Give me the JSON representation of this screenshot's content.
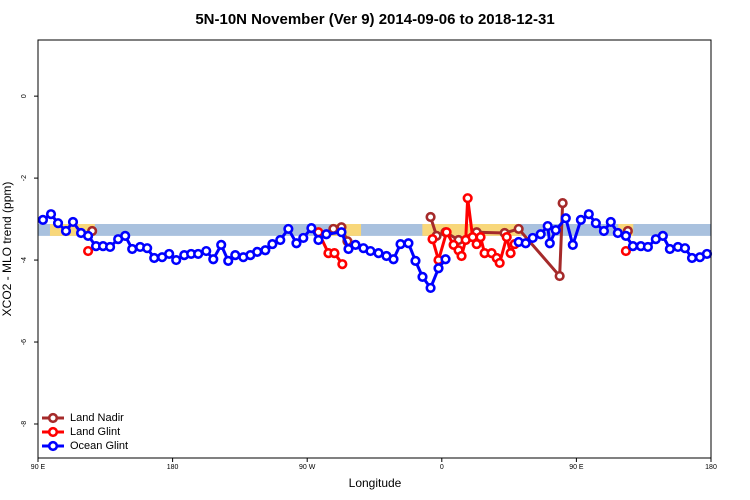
{
  "chart_data": {
    "type": "line",
    "title": "5N-10N November (Ver 9)   2014-09-06 to 2018-12-31",
    "x_label": "Longitude",
    "y_label": "XCO2 - MLO trend (ppm)",
    "xlim": [
      90,
      540
    ],
    "ylim": [
      -8.83,
      1.37
    ],
    "xticks": [
      {
        "value": 90,
        "label": "90 E"
      },
      {
        "value": 180,
        "label": "180"
      },
      {
        "value": 270,
        "label": "90 W"
      },
      {
        "value": 360,
        "label": "0"
      },
      {
        "value": 450,
        "label": "90 E"
      },
      {
        "value": 540,
        "label": "180"
      }
    ],
    "yticks": [
      0,
      -2,
      -4,
      -6,
      -8
    ],
    "legend_position": "bottom-left",
    "bands": [
      {
        "color": "#a9c1de",
        "xlim": [
          90,
          540
        ],
        "ylim": [
          -3.41,
          -3.12
        ]
      },
      {
        "color": "#f8d77a",
        "xlim": [
          98,
          128
        ],
        "ylim": [
          -3.41,
          -3.12
        ]
      },
      {
        "color": "#f8d77a",
        "xlim": [
          286,
          306
        ],
        "ylim": [
          -3.41,
          -3.12
        ]
      },
      {
        "color": "#f8d77a",
        "xlim": [
          347,
          413
        ],
        "ylim": [
          -3.41,
          -3.12
        ]
      },
      {
        "color": "#f8d77a",
        "xlim": [
          478,
          488
        ],
        "ylim": [
          -3.41,
          -3.12
        ]
      }
    ],
    "series": [
      {
        "name": "Land Nadir",
        "color": "#a52a2a",
        "x": [
          126.2,
          null,
          287.5,
          292.9,
          296.9,
          null,
          352.5,
          356.5,
          362.5,
          371.2,
          383.3,
          402.0,
          411.4,
          438.8,
          440.8,
          null,
          484.4
        ],
        "values": [
          -3.29,
          null,
          -3.24,
          -3.2,
          -3.54,
          null,
          -2.95,
          -3.41,
          -3.32,
          -3.51,
          -3.32,
          -3.34,
          -3.24,
          -4.39,
          -2.61,
          null,
          -3.29
        ]
      },
      {
        "name": "Land Glint",
        "color": "#ff0000",
        "x": [
          123.5,
          null,
          277.5,
          284.2,
          288.2,
          293.5,
          null,
          353.8,
          357.8,
          363.2,
          367.9,
          371.2,
          373.2,
          376.0,
          377.3,
          380.6,
          383.3,
          385.9,
          388.6,
          393.3,
          396.7,
          398.7,
          403.4,
          406.0,
          408.7,
          null,
          483.1
        ],
        "values": [
          -3.78,
          null,
          -3.32,
          -3.83,
          -3.83,
          -4.1,
          null,
          -3.49,
          -4.0,
          -3.32,
          -3.63,
          -3.76,
          -3.9,
          -3.51,
          -2.49,
          -3.44,
          -3.61,
          -3.44,
          -3.83,
          -3.83,
          -3.95,
          -4.07,
          -3.44,
          -3.83,
          -3.61,
          null,
          -3.78
        ]
      },
      {
        "name": "Ocean Glint",
        "color": "#0000ff",
        "x": [
          93.3,
          98.7,
          103.4,
          108.7,
          113.4,
          118.8,
          123.5,
          128.8,
          133.5,
          138.2,
          143.6,
          148.3,
          153.0,
          158.3,
          163.0,
          167.7,
          173.0,
          177.7,
          182.4,
          187.8,
          192.4,
          197.1,
          202.5,
          207.2,
          212.5,
          217.2,
          221.9,
          227.3,
          232.0,
          236.6,
          242.0,
          246.7,
          252.0,
          257.4,
          262.8,
          267.4,
          272.8,
          277.5,
          282.8,
          292.9,
          297.6,
          302.3,
          307.6,
          312.3,
          317.7,
          323.0,
          327.7,
          332.4,
          337.7,
          342.4,
          347.1,
          352.5,
          357.8,
          362.5,
          null,
          411.4,
          416.1,
          420.8,
          426.1,
          430.8,
          432.2,
          436.2,
          442.9,
          447.6,
          453.0,
          458.3,
          463.0,
          468.4,
          473.0,
          477.7,
          483.1,
          487.8,
          493.1,
          497.8,
          503.1,
          507.8,
          512.5,
          517.9,
          522.6,
          527.3,
          532.6,
          537.3
        ],
        "values": [
          -3.02,
          -2.88,
          -3.1,
          -3.29,
          -3.07,
          -3.34,
          -3.41,
          -3.66,
          -3.66,
          -3.68,
          -3.49,
          -3.41,
          -3.73,
          -3.68,
          -3.71,
          -3.95,
          -3.93,
          -3.85,
          -4.0,
          -3.88,
          -3.85,
          -3.85,
          -3.78,
          -3.98,
          -3.63,
          -4.02,
          -3.88,
          -3.93,
          -3.88,
          -3.8,
          -3.76,
          -3.61,
          -3.51,
          -3.24,
          -3.59,
          -3.46,
          -3.22,
          -3.51,
          -3.37,
          -3.32,
          -3.73,
          -3.63,
          -3.71,
          -3.78,
          -3.83,
          -3.9,
          -3.98,
          -3.61,
          -3.59,
          -4.02,
          -4.41,
          -4.68,
          -4.2,
          -3.98,
          null,
          -3.56,
          -3.59,
          -3.46,
          -3.37,
          -3.17,
          -3.59,
          -3.27,
          -2.98,
          -3.63,
          -3.02,
          -2.88,
          -3.1,
          -3.29,
          -3.07,
          -3.34,
          -3.41,
          -3.66,
          -3.66,
          -3.68,
          -3.49,
          -3.41,
          -3.73,
          -3.68,
          -3.71,
          -3.95,
          -3.93,
          -3.85
        ]
      }
    ]
  }
}
